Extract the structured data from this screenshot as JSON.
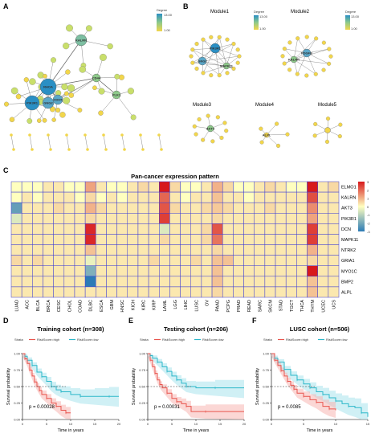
{
  "panels": {
    "a": "A",
    "b": "B",
    "c": "C",
    "d": "D",
    "e": "E",
    "f": "F"
  },
  "network": {
    "legend_title": "Degree",
    "legend_max": "13.00",
    "legend_min": "1.00",
    "hubs": [
      "RHOA",
      "PIK3R1",
      "GNG2",
      "CDK5",
      "KALRN",
      "CD44",
      "PLK1"
    ],
    "modules": [
      "Module1",
      "Module2",
      "Module3",
      "Module4",
      "Module5"
    ],
    "module_hubs": [
      "PIK3R1",
      "GNG2",
      "MAPK11",
      "PDGFB",
      "KALRN",
      "AKT3",
      "ALPL"
    ]
  },
  "heatmap": {
    "title": "Pan-cancer expression pattern",
    "genes": [
      "ELMO1",
      "KALRN",
      "AKT3",
      "PIK3R1",
      "DCN",
      "MAPK11",
      "NTRK2",
      "GRIA1",
      "MYO1C",
      "BMP2",
      "ALPL"
    ],
    "cancers": [
      "LUAD",
      "ACC",
      "BLCA",
      "BRCA",
      "CESC",
      "CHOL",
      "COAD",
      "DLBC",
      "ESCA",
      "GBM",
      "HNSC",
      "KICH",
      "KIRC",
      "KIRP",
      "LAML",
      "LGG",
      "LIHC",
      "LUSC",
      "OV",
      "PAAD",
      "PCPG",
      "PRAD",
      "READ",
      "SARC",
      "SKCM",
      "STAD",
      "TGCT",
      "THCA",
      "THYM",
      "UCEC",
      "UCS"
    ],
    "colorbar_ticks": [
      "3",
      "2",
      "1",
      "0",
      "-1",
      "-2",
      "-3"
    ],
    "values": [
      [
        0,
        0,
        0,
        0.3,
        0.3,
        0,
        0,
        1.2,
        0.3,
        0,
        0,
        0.3,
        0.5,
        0.3,
        3,
        0.5,
        0,
        0,
        0.3,
        1,
        0.5,
        0,
        0,
        0.3,
        0.5,
        0.3,
        0,
        0,
        3,
        0.3,
        0.5
      ],
      [
        0,
        0.3,
        0,
        0.3,
        0.3,
        0.3,
        0,
        0.5,
        0,
        0.3,
        0,
        0.3,
        0.3,
        0.3,
        2,
        0.3,
        0,
        0.3,
        0.3,
        0.8,
        0.3,
        0.3,
        0,
        0.3,
        0.3,
        0.3,
        0.3,
        0.3,
        2.3,
        0.3,
        0.3
      ],
      [
        -2.2,
        0.3,
        0.3,
        0.3,
        0.5,
        0.3,
        0.3,
        1,
        0.5,
        0.3,
        0.3,
        0.3,
        0.3,
        0.3,
        2.2,
        0.5,
        0.3,
        0.3,
        0.5,
        0.7,
        0.5,
        0.3,
        0.3,
        0.3,
        0.5,
        0.3,
        0.3,
        0.3,
        1.5,
        0.3,
        0.3
      ],
      [
        -0.5,
        0.3,
        0.3,
        0.3,
        0.3,
        0.3,
        0.3,
        0.5,
        0.3,
        0.3,
        0.3,
        0.3,
        0.3,
        0.3,
        2.5,
        0.3,
        0.3,
        0.3,
        0.3,
        0.5,
        0.3,
        0.3,
        0.3,
        0.3,
        0.3,
        0.3,
        0.3,
        0.3,
        1.2,
        0.3,
        0.3
      ],
      [
        0.3,
        0.3,
        0.3,
        0.3,
        0.3,
        0.3,
        0.3,
        2.8,
        0.3,
        0.3,
        0.3,
        0.3,
        0.3,
        0.3,
        -0.5,
        0.3,
        0.3,
        0.3,
        0.5,
        2.2,
        0.3,
        0.3,
        0.3,
        0.3,
        0.3,
        0.3,
        0.3,
        0.3,
        2.5,
        0.3,
        0.3
      ],
      [
        0.3,
        0.3,
        0.3,
        0.3,
        0.3,
        0.3,
        0.3,
        2.8,
        0.3,
        0.3,
        0.3,
        0.3,
        0.3,
        0.3,
        0.5,
        0.3,
        0.3,
        0.3,
        0.5,
        1.8,
        0.3,
        0.3,
        0.3,
        0.3,
        0.3,
        0.3,
        0.3,
        0.3,
        2.5,
        0.3,
        0.3
      ],
      [
        0.3,
        0.3,
        0.3,
        0.3,
        0.3,
        0.3,
        0.3,
        0.8,
        0.3,
        0.3,
        0.3,
        0.3,
        0.3,
        0.3,
        0.3,
        0.3,
        0.3,
        0.3,
        0.3,
        0.5,
        0.3,
        0.3,
        0.3,
        0.3,
        0.3,
        0.3,
        0.3,
        0.3,
        1,
        0.3,
        0.3
      ],
      [
        0.5,
        0.3,
        0.5,
        0.3,
        0.3,
        0.3,
        0.3,
        -0.3,
        0.3,
        0.3,
        0.3,
        0.3,
        0.3,
        0.5,
        0.3,
        0.3,
        0.3,
        0.5,
        0.3,
        0.8,
        0.8,
        0.3,
        0.3,
        0.3,
        0.3,
        0.3,
        0.3,
        0.3,
        0.5,
        0.3,
        0.3
      ],
      [
        0.3,
        0.3,
        0.3,
        0.3,
        0.3,
        0.3,
        0.3,
        -1.8,
        0.3,
        0.3,
        0.3,
        0.3,
        0.3,
        0.3,
        0.3,
        0.3,
        0.3,
        0.3,
        0.3,
        0.8,
        0.3,
        0.3,
        0.3,
        0.3,
        0.3,
        0.3,
        0.3,
        0.3,
        3.2,
        0.3,
        0.3
      ],
      [
        0.3,
        0.3,
        0.3,
        0.3,
        0.3,
        0.3,
        0.3,
        -3,
        0.3,
        0.3,
        0.3,
        0.3,
        0.3,
        0.3,
        0.3,
        0.3,
        0.3,
        0.3,
        0.3,
        0.8,
        0.3,
        0.3,
        0.3,
        0.3,
        0.3,
        0.3,
        0.3,
        0.3,
        0.8,
        0.3,
        0.3
      ],
      [
        0.3,
        0.3,
        0.3,
        0.3,
        0.3,
        0.3,
        0.3,
        0.3,
        0.3,
        0.3,
        0.3,
        0.3,
        0.3,
        0.3,
        0.3,
        0.3,
        0.3,
        0.3,
        0.3,
        0.5,
        0.3,
        0.3,
        0.3,
        0.3,
        0.3,
        0.3,
        0.3,
        0.3,
        0.8,
        0.3,
        0.3
      ]
    ]
  },
  "km": [
    {
      "title": "Training cohort (n=308)",
      "strata_label": "Strata",
      "high_label": "RiskScore=high",
      "low_label": "RiskScore=low",
      "ylabel": "Survival probability",
      "xlabel": "Time in years",
      "pvalue": "p = 0.00028",
      "xticks": [
        "0",
        "5",
        "10",
        "15",
        "20"
      ],
      "yticks": [
        "0.00",
        "0.25",
        "0.50",
        "0.75",
        "1.00"
      ],
      "xmax": 20,
      "high": [
        [
          0,
          1
        ],
        [
          0.5,
          0.92
        ],
        [
          1,
          0.85
        ],
        [
          1.5,
          0.75
        ],
        [
          2,
          0.66
        ],
        [
          2.5,
          0.57
        ],
        [
          3,
          0.5
        ],
        [
          3.5,
          0.44
        ],
        [
          4,
          0.38
        ],
        [
          5,
          0.32
        ],
        [
          6,
          0.25
        ],
        [
          7,
          0.2
        ],
        [
          8,
          0.14
        ],
        [
          9,
          0.1
        ],
        [
          10,
          0.1
        ]
      ],
      "low": [
        [
          0,
          1
        ],
        [
          0.5,
          0.96
        ],
        [
          1,
          0.9
        ],
        [
          2,
          0.82
        ],
        [
          3,
          0.72
        ],
        [
          4,
          0.65
        ],
        [
          5,
          0.58
        ],
        [
          6,
          0.5
        ],
        [
          7,
          0.45
        ],
        [
          8,
          0.42
        ],
        [
          10,
          0.38
        ],
        [
          12,
          0.35
        ],
        [
          15,
          0.35
        ],
        [
          18,
          0.35
        ],
        [
          20,
          0.35
        ]
      ]
    },
    {
      "title": "Testing cohort (n=206)",
      "strata_label": "Strata",
      "high_label": "RiskScore=high",
      "low_label": "RiskScore=low",
      "ylabel": "Survival probability",
      "xlabel": "Time in years",
      "pvalue": "p = 0.00031",
      "xticks": [
        "0",
        "5",
        "10",
        "15",
        "20"
      ],
      "yticks": [
        "0.00",
        "0.25",
        "0.50",
        "0.75",
        "1.00"
      ],
      "xmax": 20,
      "high": [
        [
          0,
          1
        ],
        [
          0.5,
          0.9
        ],
        [
          1,
          0.8
        ],
        [
          1.5,
          0.7
        ],
        [
          2,
          0.6
        ],
        [
          2.5,
          0.53
        ],
        [
          3,
          0.48
        ],
        [
          4,
          0.4
        ],
        [
          5,
          0.32
        ],
        [
          6,
          0.27
        ],
        [
          7,
          0.24
        ],
        [
          8,
          0.2
        ],
        [
          9,
          0.12
        ],
        [
          12,
          0.12
        ],
        [
          20,
          0.12
        ]
      ],
      "low": [
        [
          0,
          1
        ],
        [
          0.5,
          0.97
        ],
        [
          1,
          0.93
        ],
        [
          2,
          0.87
        ],
        [
          3,
          0.8
        ],
        [
          4,
          0.73
        ],
        [
          5,
          0.66
        ],
        [
          6,
          0.6
        ],
        [
          7,
          0.55
        ],
        [
          8,
          0.5
        ],
        [
          10,
          0.48
        ],
        [
          14,
          0.48
        ],
        [
          20,
          0.48
        ]
      ]
    },
    {
      "title": "LUSC cohort (n=506)",
      "strata_label": "Strata",
      "high_label": "RiskScore=high",
      "low_label": "RiskScore=low",
      "ylabel": "Survival probability",
      "xlabel": "Time in years",
      "pvalue": "p = 0.0085",
      "xticks": [
        "0",
        "5",
        "10",
        "15"
      ],
      "yticks": [
        "0.00",
        "0.25",
        "0.50",
        "0.75",
        "1.00"
      ],
      "xmax": 15,
      "high": [
        [
          0,
          1
        ],
        [
          0.5,
          0.9
        ],
        [
          1,
          0.82
        ],
        [
          1.5,
          0.74
        ],
        [
          2,
          0.66
        ],
        [
          2.5,
          0.58
        ],
        [
          3,
          0.52
        ],
        [
          3.5,
          0.46
        ],
        [
          4,
          0.4
        ],
        [
          5,
          0.35
        ],
        [
          6,
          0.3
        ],
        [
          7,
          0.26
        ],
        [
          8,
          0.2
        ],
        [
          9,
          0.16
        ],
        [
          10,
          0.14
        ]
      ],
      "low": [
        [
          0,
          1
        ],
        [
          0.5,
          0.93
        ],
        [
          1,
          0.87
        ],
        [
          2,
          0.76
        ],
        [
          3,
          0.67
        ],
        [
          4,
          0.6
        ],
        [
          5,
          0.54
        ],
        [
          6,
          0.48
        ],
        [
          7,
          0.42
        ],
        [
          8,
          0.38
        ],
        [
          9,
          0.33
        ],
        [
          10,
          0.28
        ],
        [
          11,
          0.24
        ],
        [
          12,
          0.2
        ],
        [
          13,
          0.18
        ],
        [
          14,
          0.1
        ],
        [
          15,
          0.04
        ]
      ]
    }
  ],
  "colors": {
    "high": "#e8554e",
    "low": "#2cb7c9",
    "high_band": "#f7b6b2",
    "low_band": "#a9e4ec",
    "node_hi": "#2a8fc4",
    "node_mid": "#8dc98a",
    "node_lo": "#f2d64b",
    "heat_pos": "#d7191c",
    "heat_zero": "#ffffbf",
    "heat_neg": "#2c7bb6",
    "grid": "#3b3bd6"
  }
}
